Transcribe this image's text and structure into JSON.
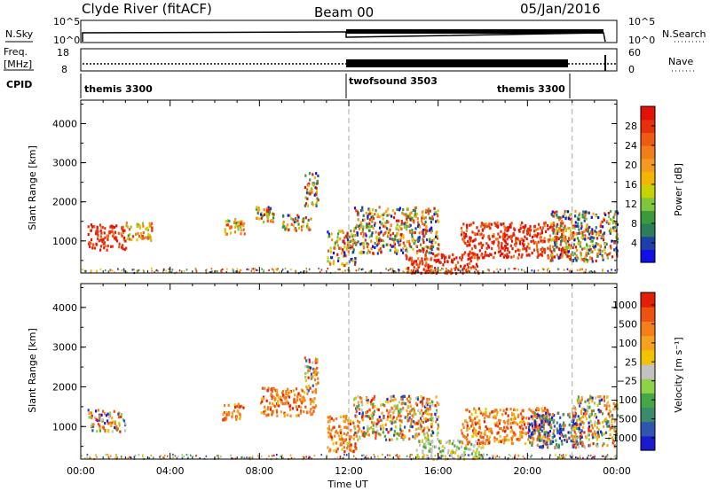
{
  "header": {
    "station": "Clyde River (fitACF)",
    "beam": "Beam 00",
    "date": "05/Jan/2016"
  },
  "status_panels": {
    "nsky_label": "N.Sky",
    "nsky_ticks": [
      "10^5",
      "10^0"
    ],
    "nsearch_label": "N.Search",
    "nsearch_ticks": [
      "10^5",
      "10^0"
    ],
    "freq_label_1": "Freq.",
    "freq_label_2": "[MHz]",
    "freq_ticks": [
      "18",
      "8"
    ],
    "nave_label": "Nave",
    "nave_ticks": [
      "60",
      "0"
    ],
    "cpid_label": "CPID",
    "cpid_segments": [
      {
        "name": "themis 3300",
        "start_hour": 0,
        "end_hour": 12
      },
      {
        "name": "twofsound 3503",
        "start_hour": 12,
        "end_hour": 22
      },
      {
        "name": "themis 3300",
        "start_hour": 22,
        "end_hour": 24
      }
    ]
  },
  "chart_data": [
    {
      "type": "heatmap",
      "parameter": "power",
      "xlabel": "",
      "ylabel": "Slant Range [km]",
      "ylim": [
        180,
        4600
      ],
      "xlim_hours": [
        0,
        24
      ],
      "y_ticks": [
        1000,
        2000,
        3000,
        4000
      ],
      "colorbar": {
        "label": "Power [dB]",
        "range": [
          0,
          32
        ],
        "ticks": [
          "4",
          "8",
          "12",
          "16",
          "20",
          "24",
          "28"
        ],
        "colors": [
          "#1010e6",
          "#1f3fa8",
          "#2b7d5c",
          "#3c9a3c",
          "#7dc73c",
          "#c8d200",
          "#f2b600",
          "#f59a1f",
          "#f27d1a",
          "#ee5a12",
          "#e8300c",
          "#e31207"
        ]
      },
      "dashed_lines_hours": [
        12,
        22
      ],
      "scatter_regions": [
        {
          "t": [
            0.3,
            2.0
          ],
          "r": [
            800,
            1450
          ],
          "level": "high"
        },
        {
          "t": [
            2.0,
            3.2
          ],
          "r": [
            1050,
            1500
          ],
          "level": "mid"
        },
        {
          "t": [
            6.3,
            7.3
          ],
          "r": [
            1200,
            1600
          ],
          "level": "mid"
        },
        {
          "t": [
            7.8,
            8.6
          ],
          "r": [
            1500,
            1900
          ],
          "level": "mixed"
        },
        {
          "t": [
            9.0,
            10.3
          ],
          "r": [
            1300,
            1700
          ],
          "level": "mixed"
        },
        {
          "t": [
            10.0,
            10.6
          ],
          "r": [
            1900,
            2800
          ],
          "level": "mixed"
        },
        {
          "t": [
            11.0,
            12.3
          ],
          "r": [
            400,
            1300
          ],
          "level": "mixed"
        },
        {
          "t": [
            12.2,
            16.0
          ],
          "r": [
            700,
            1900
          ],
          "level": "mixed"
        },
        {
          "t": [
            14.5,
            17.8
          ],
          "r": [
            200,
            700
          ],
          "level": "high"
        },
        {
          "t": [
            17.0,
            22.0
          ],
          "r": [
            600,
            1500
          ],
          "level": "high"
        },
        {
          "t": [
            21.0,
            24.0
          ],
          "r": [
            500,
            1800
          ],
          "level": "mixed"
        }
      ]
    },
    {
      "type": "heatmap",
      "parameter": "velocity",
      "xlabel": "Time UT",
      "ylabel": "Slant Range [km]",
      "ylim": [
        180,
        4600
      ],
      "xlim_hours": [
        0,
        24
      ],
      "x_ticks": [
        "00:00",
        "04:00",
        "08:00",
        "12:00",
        "16:00",
        "20:00",
        "00:00"
      ],
      "y_ticks": [
        1000,
        2000,
        3000,
        4000
      ],
      "colorbar": {
        "label": "Velocity [m s⁻¹]",
        "ticks": [
          "1000",
          "500",
          "100",
          "25",
          "−25",
          "−100",
          "−500",
          "−1000"
        ],
        "colors": [
          "#1a1ad0",
          "#2e55b0",
          "#3a8a6c",
          "#45a646",
          "#8ed24a",
          "#c2c2c2",
          "#f2c400",
          "#f5a21e",
          "#f57e1a",
          "#ee5211",
          "#e32007"
        ]
      },
      "dashed_lines_hours": [
        12,
        22
      ],
      "scatter_regions": [
        {
          "t": [
            0.3,
            2.0
          ],
          "r": [
            900,
            1450
          ],
          "level": "mixed"
        },
        {
          "t": [
            6.3,
            7.3
          ],
          "r": [
            1200,
            1600
          ],
          "level": "away"
        },
        {
          "t": [
            8.0,
            10.5
          ],
          "r": [
            1300,
            2000
          ],
          "level": "away"
        },
        {
          "t": [
            10.0,
            10.6
          ],
          "r": [
            1900,
            2800
          ],
          "level": "mixed"
        },
        {
          "t": [
            11.0,
            12.3
          ],
          "r": [
            400,
            1300
          ],
          "level": "away"
        },
        {
          "t": [
            12.2,
            16.0
          ],
          "r": [
            700,
            1800
          ],
          "level": "mixed"
        },
        {
          "t": [
            15.0,
            18.0
          ],
          "r": [
            200,
            700
          ],
          "level": "ground"
        },
        {
          "t": [
            17.0,
            21.0
          ],
          "r": [
            600,
            1500
          ],
          "level": "away"
        },
        {
          "t": [
            20.0,
            22.5
          ],
          "r": [
            500,
            1400
          ],
          "level": "toward"
        },
        {
          "t": [
            22.0,
            24.0
          ],
          "r": [
            500,
            1800
          ],
          "level": "mixed"
        }
      ]
    }
  ]
}
